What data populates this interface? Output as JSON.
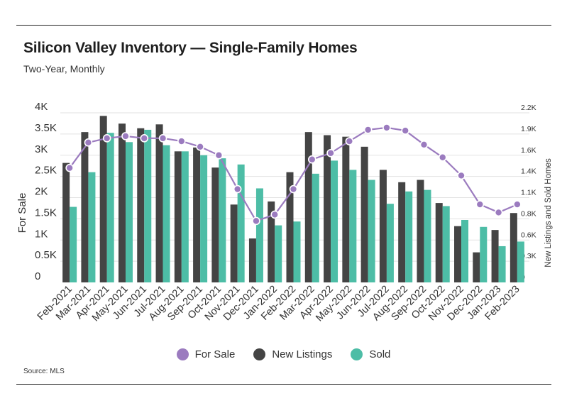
{
  "header": {
    "title": "Silicon Valley Inventory — Single-Family Homes",
    "subtitle": "Two-Year, Monthly"
  },
  "footer": {
    "source": "Source: MLS"
  },
  "colors": {
    "for_sale": "#9b7bbf",
    "new_listings": "#444444",
    "sold": "#4dbda6"
  },
  "chart_data": {
    "type": "bar",
    "categories": [
      "Feb-2021",
      "Mar-2021",
      "Apr-2021",
      "May-2021",
      "Jun-2021",
      "Jul-2021",
      "Aug-2021",
      "Sep-2021",
      "Oct-2021",
      "Nov-2021",
      "Dec-2021",
      "Jan-2022",
      "Feb-2022",
      "Mar-2022",
      "Apr-2022",
      "May-2022",
      "Jun-2022",
      "Jul-2022",
      "Aug-2022",
      "Sep-2022",
      "Oct-2022",
      "Nov-2022",
      "Dec-2022",
      "Jan-2023",
      "Feb-2023"
    ],
    "ylabel": "For Sale",
    "y2label": "New Listings and Sold Homes",
    "y_ticks": [
      "0",
      "0.5K",
      "1K",
      "1.5K",
      "2K",
      "2.5K",
      "3K",
      "3.5K",
      "4K"
    ],
    "y2_ticks": [
      "0",
      "0.3K",
      "0.6K",
      "0.8K",
      "1.1K",
      "1.4K",
      "1.6K",
      "1.9K",
      "2.2K"
    ],
    "ylim": [
      0,
      4000
    ],
    "y2lim": [
      0,
      2200
    ],
    "series": [
      {
        "name": "For Sale",
        "type": "line",
        "axis": "left",
        "values": [
          2700,
          3300,
          3400,
          3450,
          3400,
          3400,
          3330,
          3200,
          3000,
          2200,
          1450,
          1600,
          2200,
          2900,
          3050,
          3330,
          3600,
          3650,
          3580,
          3250,
          2950,
          2520,
          1840,
          1650,
          1840
        ]
      },
      {
        "name": "New Listings",
        "type": "bar",
        "axis": "right",
        "values": [
          1550,
          1950,
          2160,
          2060,
          2000,
          2050,
          1700,
          1750,
          1490,
          1010,
          570,
          1050,
          1430,
          1950,
          1910,
          1890,
          1760,
          1460,
          1300,
          1330,
          1030,
          730,
          390,
          680,
          900
        ]
      },
      {
        "name": "Sold",
        "type": "bar",
        "axis": "right",
        "values": [
          980,
          1430,
          1940,
          1820,
          1980,
          1780,
          1700,
          1650,
          1610,
          1530,
          1220,
          740,
          790,
          1410,
          1580,
          1460,
          1330,
          1020,
          1180,
          1200,
          990,
          810,
          720,
          470,
          530
        ]
      }
    ],
    "legend_position": "bottom"
  }
}
